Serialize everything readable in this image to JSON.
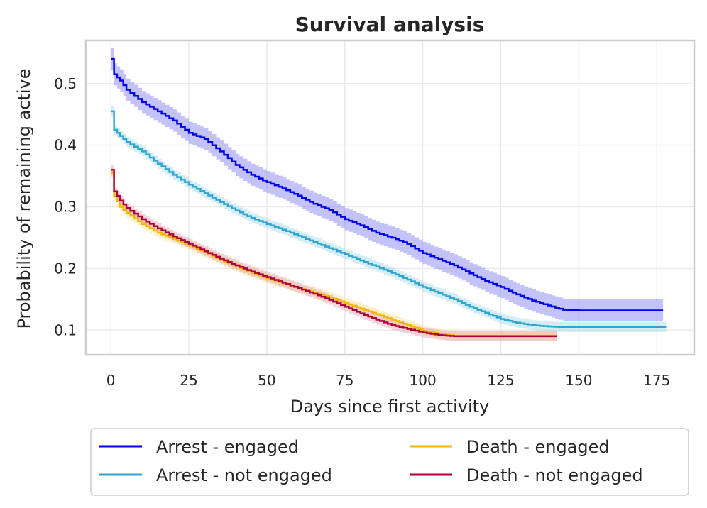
{
  "chart_data": {
    "type": "line",
    "title": "Survival analysis",
    "xlabel": "Days since first activity",
    "ylabel": "Probability of remaining active",
    "xlim": [
      -8,
      187
    ],
    "ylim": [
      0.06,
      0.57
    ],
    "xticks": [
      0,
      25,
      50,
      75,
      100,
      125,
      150,
      175
    ],
    "yticks": [
      0.1,
      0.2,
      0.3,
      0.4,
      0.5
    ],
    "grid": true,
    "legend_position": "below",
    "series": [
      {
        "name": "Arrest - engaged",
        "color": "#0000ee",
        "band_color": "#7b7bf5",
        "ci_halfwidth": 0.018,
        "points": [
          [
            0,
            0.54
          ],
          [
            1,
            0.515
          ],
          [
            3,
            0.505
          ],
          [
            5,
            0.49
          ],
          [
            10,
            0.47
          ],
          [
            15,
            0.455
          ],
          [
            20,
            0.44
          ],
          [
            25,
            0.42
          ],
          [
            30,
            0.41
          ],
          [
            35,
            0.39
          ],
          [
            40,
            0.368
          ],
          [
            45,
            0.352
          ],
          [
            50,
            0.34
          ],
          [
            55,
            0.33
          ],
          [
            60,
            0.318
          ],
          [
            65,
            0.305
          ],
          [
            70,
            0.295
          ],
          [
            75,
            0.28
          ],
          [
            80,
            0.27
          ],
          [
            85,
            0.258
          ],
          [
            90,
            0.25
          ],
          [
            95,
            0.24
          ],
          [
            100,
            0.225
          ],
          [
            105,
            0.215
          ],
          [
            110,
            0.205
          ],
          [
            115,
            0.192
          ],
          [
            120,
            0.18
          ],
          [
            125,
            0.17
          ],
          [
            130,
            0.158
          ],
          [
            135,
            0.148
          ],
          [
            140,
            0.14
          ],
          [
            145,
            0.133
          ],
          [
            150,
            0.132
          ],
          [
            177,
            0.132
          ]
        ]
      },
      {
        "name": "Arrest - not engaged",
        "color": "#2fa5cf",
        "band_color": "#9ed8ec",
        "ci_halfwidth": 0.008,
        "points": [
          [
            0,
            0.455
          ],
          [
            1,
            0.425
          ],
          [
            3,
            0.415
          ],
          [
            5,
            0.405
          ],
          [
            10,
            0.39
          ],
          [
            15,
            0.37
          ],
          [
            20,
            0.352
          ],
          [
            25,
            0.336
          ],
          [
            30,
            0.322
          ],
          [
            35,
            0.308
          ],
          [
            40,
            0.294
          ],
          [
            45,
            0.282
          ],
          [
            50,
            0.272
          ],
          [
            55,
            0.263
          ],
          [
            60,
            0.253
          ],
          [
            65,
            0.243
          ],
          [
            70,
            0.233
          ],
          [
            75,
            0.223
          ],
          [
            80,
            0.213
          ],
          [
            85,
            0.203
          ],
          [
            90,
            0.193
          ],
          [
            95,
            0.182
          ],
          [
            100,
            0.17
          ],
          [
            105,
            0.16
          ],
          [
            110,
            0.15
          ],
          [
            115,
            0.138
          ],
          [
            120,
            0.128
          ],
          [
            125,
            0.118
          ],
          [
            130,
            0.112
          ],
          [
            135,
            0.108
          ],
          [
            140,
            0.106
          ],
          [
            145,
            0.105
          ],
          [
            178,
            0.105
          ]
        ]
      },
      {
        "name": "Death - engaged",
        "color": "#f0b800",
        "band_color": "#f7dd8a",
        "ci_halfwidth": 0.008,
        "points": [
          [
            0,
            0.355
          ],
          [
            1,
            0.318
          ],
          [
            3,
            0.3
          ],
          [
            5,
            0.29
          ],
          [
            10,
            0.272
          ],
          [
            15,
            0.258
          ],
          [
            20,
            0.248
          ],
          [
            25,
            0.237
          ],
          [
            30,
            0.226
          ],
          [
            35,
            0.214
          ],
          [
            40,
            0.203
          ],
          [
            45,
            0.193
          ],
          [
            50,
            0.184
          ],
          [
            55,
            0.176
          ],
          [
            60,
            0.168
          ],
          [
            65,
            0.161
          ],
          [
            70,
            0.153
          ],
          [
            75,
            0.144
          ],
          [
            80,
            0.135
          ],
          [
            85,
            0.126
          ],
          [
            90,
            0.117
          ],
          [
            95,
            0.108
          ],
          [
            100,
            0.099
          ],
          [
            105,
            0.094
          ],
          [
            110,
            0.091
          ],
          [
            143,
            0.091
          ]
        ]
      },
      {
        "name": "Death - not engaged",
        "color": "#b0003a",
        "band_color": "#e8a0b4",
        "ci_halfwidth": 0.008,
        "points": [
          [
            0,
            0.36
          ],
          [
            1,
            0.325
          ],
          [
            3,
            0.31
          ],
          [
            5,
            0.298
          ],
          [
            10,
            0.28
          ],
          [
            15,
            0.265
          ],
          [
            20,
            0.252
          ],
          [
            25,
            0.24
          ],
          [
            30,
            0.228
          ],
          [
            35,
            0.216
          ],
          [
            40,
            0.205
          ],
          [
            45,
            0.195
          ],
          [
            50,
            0.186
          ],
          [
            55,
            0.177
          ],
          [
            60,
            0.168
          ],
          [
            65,
            0.159
          ],
          [
            70,
            0.149
          ],
          [
            75,
            0.138
          ],
          [
            80,
            0.127
          ],
          [
            85,
            0.117
          ],
          [
            90,
            0.108
          ],
          [
            95,
            0.102
          ],
          [
            100,
            0.096
          ],
          [
            105,
            0.092
          ],
          [
            110,
            0.09
          ],
          [
            143,
            0.09
          ]
        ]
      }
    ]
  }
}
